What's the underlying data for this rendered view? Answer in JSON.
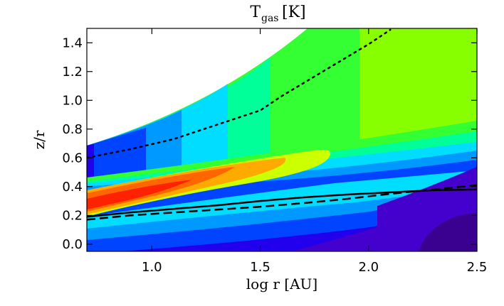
{
  "chart_data": {
    "type": "heatmap",
    "title": "T",
    "title_subscript": "gas",
    "title_suffix": " [K]",
    "xlabel": "log r [AU]",
    "ylabel": "z/r",
    "xlim": [
      0.7,
      2.5
    ],
    "ylim": [
      -0.05,
      1.5
    ],
    "xticks": [
      1.0,
      1.5,
      2.0,
      2.5
    ],
    "xtick_labels": [
      "1.0",
      "1.5",
      "2.0",
      "2.5"
    ],
    "yticks": [
      0.0,
      0.2,
      0.4,
      0.6,
      0.8,
      1.0,
      1.2,
      1.4
    ],
    "ytick_labels": [
      "0.0",
      "0.2",
      "0.4",
      "0.6",
      "0.8",
      "1.0",
      "1.2",
      "1.4"
    ],
    "series": [
      {
        "name": "solid",
        "style": "solid",
        "x": [
          0.7,
          0.9,
          1.1,
          1.3,
          1.5,
          1.7,
          1.9,
          2.1,
          2.3,
          2.5
        ],
        "y": [
          0.19,
          0.22,
          0.245,
          0.27,
          0.3,
          0.325,
          0.345,
          0.36,
          0.375,
          0.38
        ]
      },
      {
        "name": "dashed",
        "style": "dashed",
        "x": [
          0.7,
          0.9,
          1.1,
          1.3,
          1.5,
          1.7,
          1.9,
          2.1,
          2.3,
          2.5
        ],
        "y": [
          0.17,
          0.2,
          0.22,
          0.24,
          0.26,
          0.285,
          0.315,
          0.35,
          0.38,
          0.41
        ]
      },
      {
        "name": "dotted",
        "style": "dotted",
        "x": [
          0.7,
          0.9,
          1.1,
          1.3,
          1.5,
          1.6,
          1.7,
          1.8,
          1.9,
          2.0,
          2.1
        ],
        "y": [
          0.6,
          0.66,
          0.73,
          0.83,
          0.93,
          1.03,
          1.12,
          1.21,
          1.3,
          1.39,
          1.49
        ]
      }
    ],
    "colors": {
      "white": "#ffffff",
      "lightgreen": "#88ff00",
      "green": "#33ff33",
      "seagreen": "#00ff99",
      "cyan": "#00ddff",
      "skyblue": "#0099ff",
      "blue": "#0044ff",
      "darkblue": "#2200ee",
      "indigo": "#4400cc",
      "deepindigo": "#3a0090",
      "yellow": "#ccff00",
      "orange": "#ffaa00",
      "darkorange": "#ff6600",
      "red": "#ff2200"
    }
  }
}
